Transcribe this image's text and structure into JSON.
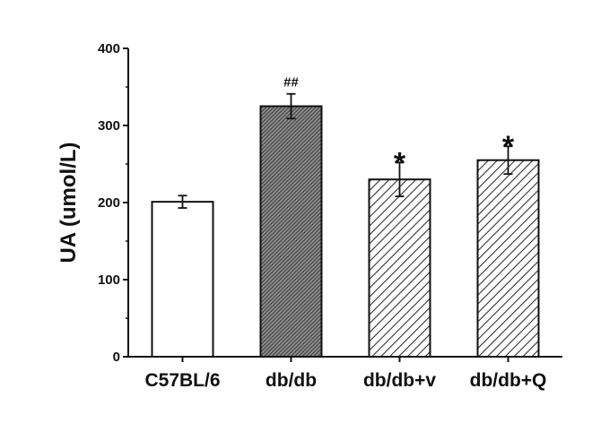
{
  "chart_data": {
    "type": "bar",
    "title": "",
    "xlabel": "",
    "ylabel": "UA (umol/L)",
    "ylim": [
      0,
      400
    ],
    "yticks": [
      0,
      100,
      200,
      300,
      400
    ],
    "grid": false,
    "categories": [
      "C57BL/6",
      "db/db",
      "db/db+v",
      "db/db+Q"
    ],
    "values": [
      201,
      325,
      230,
      255
    ],
    "errors": [
      8,
      16,
      22,
      18
    ],
    "fills": [
      "white",
      "dense-hatch",
      "hatch",
      "hatch"
    ],
    "annotations": [
      "",
      "##",
      "*",
      "*"
    ],
    "colors": {
      "axis": "#111111",
      "bar_stroke": "#111111",
      "dense_fill": "#6e6e6e",
      "hatch_line": "#333333"
    }
  }
}
